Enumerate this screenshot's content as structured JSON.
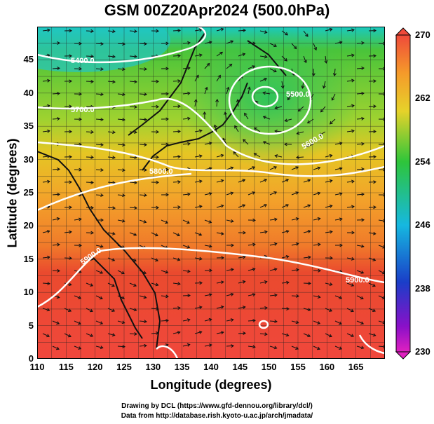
{
  "title": "GSM 00Z20Apr2024 (500.0hPa)",
  "xlabel": "Longitude (degrees)",
  "ylabel": "Latitude  (degrees)",
  "x_ticks": [
    "110",
    "115",
    "120",
    "125",
    "130",
    "135",
    "140",
    "145",
    "150",
    "155",
    "160",
    "165"
  ],
  "y_ticks": [
    "0",
    "5",
    "10",
    "15",
    "20",
    "25",
    "30",
    "35",
    "40",
    "45"
  ],
  "colorbar_ticks": [
    "270",
    "262",
    "254",
    "246",
    "238",
    "230"
  ],
  "contour_labels": [
    "5400.0",
    "5700.0",
    "5800.0",
    "5500.0",
    "5900.0",
    "5900.0",
    "5600.0"
  ],
  "credit_line1": "Drawing by DCL (https://www.gfd-dennou.org/library/dcl/)",
  "credit_line2": "Data from http://database.rish.kyoto-u.ac.jp/arch/jmadata/",
  "colors": {
    "warm": "#e83a2a",
    "orange": "#f08a22",
    "yellow": "#e8c024",
    "green": "#4ec23a",
    "cyan": "#19c9c0"
  },
  "chart_data": {
    "type": "heatmap",
    "title": "GSM 00Z20Apr2024 (500.0hPa)",
    "xlabel": "Longitude (degrees)",
    "ylabel": "Latitude  (degrees)",
    "xlim": [
      110,
      170
    ],
    "ylim": [
      0,
      50
    ],
    "colorbar_range": [
      230,
      270
    ],
    "contours": [
      5400,
      5500,
      5600,
      5700,
      5800,
      5900
    ],
    "low_center": [
      150,
      40.5
    ]
  }
}
